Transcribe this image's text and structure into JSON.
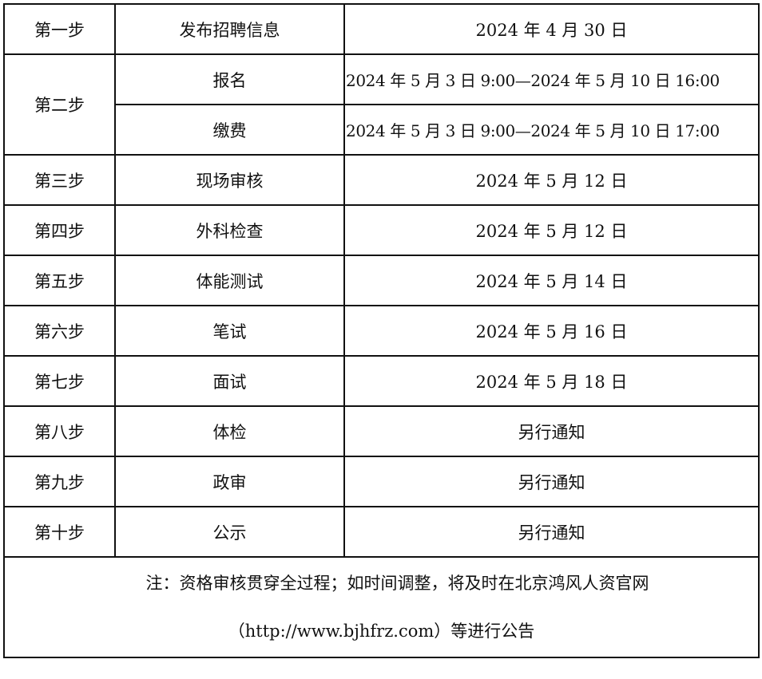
{
  "rows": [
    {
      "step": "第一步",
      "item": "发布招聘信息",
      "time": "2024 年 4 月 30 日"
    },
    {
      "step": "第二步",
      "sub": [
        {
          "item": "报名",
          "time": "2024 年 5 月 3 日 9:00—2024 年 5 月 10 日 16:00"
        },
        {
          "item": "缴费",
          "time": "2024 年 5 月 3 日 9:00—2024 年 5 月 10 日 17:00"
        }
      ]
    },
    {
      "step": "第三步",
      "item": "现场审核",
      "time": "2024 年 5 月 12 日"
    },
    {
      "step": "第四步",
      "item": "外科检查",
      "time": "2024 年 5 月 12 日"
    },
    {
      "step": "第五步",
      "item": "体能测试",
      "time": "2024 年 5 月 14 日"
    },
    {
      "step": "第六步",
      "item": "笔试",
      "time": "2024 年 5 月 16 日"
    },
    {
      "step": "第七步",
      "item": "面试",
      "time": "2024 年 5 月 18 日"
    },
    {
      "step": "第八步",
      "item": "体检",
      "time": "另行通知"
    },
    {
      "step": "第九步",
      "item": "政审",
      "time": "另行通知"
    },
    {
      "step": "第十步",
      "item": "公示",
      "time": "另行通知"
    }
  ],
  "note": {
    "line1": "注：资格审核贯穿全过程；如时间调整，将及时在北京鸿风人资官网",
    "line2": "（http://www.bjhfrz.com）等进行公告"
  }
}
